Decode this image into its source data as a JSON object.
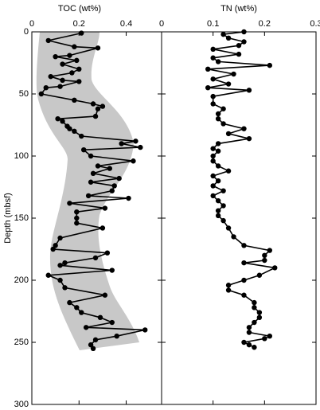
{
  "chart_data": [
    {
      "type": "line",
      "title": "TOC (wt%)",
      "y_label": "Depth (mbsf)",
      "y": [
        1,
        7,
        12,
        13,
        19,
        20,
        23,
        26,
        30,
        33,
        36,
        39,
        40,
        44,
        45,
        50,
        55,
        58,
        60,
        62,
        68,
        70,
        72,
        76,
        78,
        80,
        84,
        88,
        90,
        93,
        95,
        100,
        104,
        108,
        110,
        114,
        118,
        121,
        124,
        128,
        132,
        134,
        138,
        142,
        145,
        150,
        154,
        158,
        166,
        172,
        175,
        178,
        182,
        186,
        188,
        192,
        196,
        200,
        206,
        212,
        218,
        222,
        226,
        230,
        234,
        238,
        240,
        245,
        248,
        252,
        255
      ],
      "values": [
        0.21,
        0.07,
        0.18,
        0.28,
        0.16,
        0.1,
        0.19,
        0.13,
        0.2,
        0.17,
        0.08,
        0.13,
        0.2,
        0.12,
        0.06,
        0.04,
        0.18,
        0.26,
        0.3,
        0.28,
        0.27,
        0.11,
        0.13,
        0.15,
        0.16,
        0.18,
        0.21,
        0.44,
        0.38,
        0.46,
        0.22,
        0.25,
        0.43,
        0.28,
        0.33,
        0.26,
        0.37,
        0.25,
        0.35,
        0.34,
        0.24,
        0.41,
        0.16,
        0.31,
        0.19,
        0.19,
        0.19,
        0.3,
        0.12,
        0.1,
        0.09,
        0.32,
        0.27,
        0.14,
        0.12,
        0.34,
        0.07,
        0.12,
        0.14,
        0.31,
        0.16,
        0.19,
        0.21,
        0.29,
        0.34,
        0.23,
        0.48,
        0.36,
        0.27,
        0.25,
        0.26
      ],
      "color": "#000000",
      "xlim": [
        0,
        0.55
      ],
      "xticks": [
        0,
        0.2,
        0.4
      ],
      "ylim": [
        0,
        300
      ],
      "yticks": [
        0,
        50,
        100,
        150,
        200,
        250,
        300
      ],
      "y_inverted": true
    },
    {
      "type": "line",
      "title": "TN (wt%)",
      "y": [
        0,
        2,
        5,
        8,
        11,
        14,
        18,
        21,
        24,
        27,
        30,
        34,
        38,
        42,
        45,
        47,
        52,
        58,
        62,
        66,
        70,
        74,
        78,
        82,
        86,
        90,
        94,
        96,
        100,
        104,
        108,
        112,
        116,
        120,
        124,
        128,
        132,
        136,
        140,
        144,
        148,
        152,
        158,
        165,
        172,
        176,
        180,
        184,
        186,
        190,
        196,
        200,
        204,
        208,
        212,
        218,
        222,
        226,
        230,
        234,
        238,
        242,
        245,
        247,
        250,
        252,
        254
      ],
      "values": [
        0.16,
        0.12,
        0.13,
        0.16,
        0.15,
        0.1,
        0.15,
        0.1,
        0.11,
        0.21,
        0.09,
        0.14,
        0.1,
        0.13,
        0.09,
        0.17,
        0.1,
        0.1,
        0.12,
        0.11,
        0.11,
        0.12,
        0.16,
        0.13,
        0.17,
        0.11,
        0.1,
        0.11,
        0.1,
        0.1,
        0.11,
        0.13,
        0.1,
        0.11,
        0.1,
        0.12,
        0.1,
        0.11,
        0.12,
        0.11,
        0.11,
        0.12,
        0.13,
        0.14,
        0.16,
        0.21,
        0.2,
        0.2,
        0.16,
        0.22,
        0.19,
        0.16,
        0.13,
        0.13,
        0.16,
        0.18,
        0.18,
        0.19,
        0.19,
        0.18,
        0.17,
        0.17,
        0.21,
        0.2,
        0.16,
        0.17,
        0.18
      ],
      "color": "#000000",
      "xlim": [
        0,
        0.3
      ],
      "xticks": [
        0,
        0.1,
        0.2,
        0.3
      ],
      "ylim": [
        0,
        300
      ],
      "yticks": [
        0,
        50,
        100,
        150,
        200,
        250,
        300
      ],
      "y_inverted": true
    }
  ]
}
